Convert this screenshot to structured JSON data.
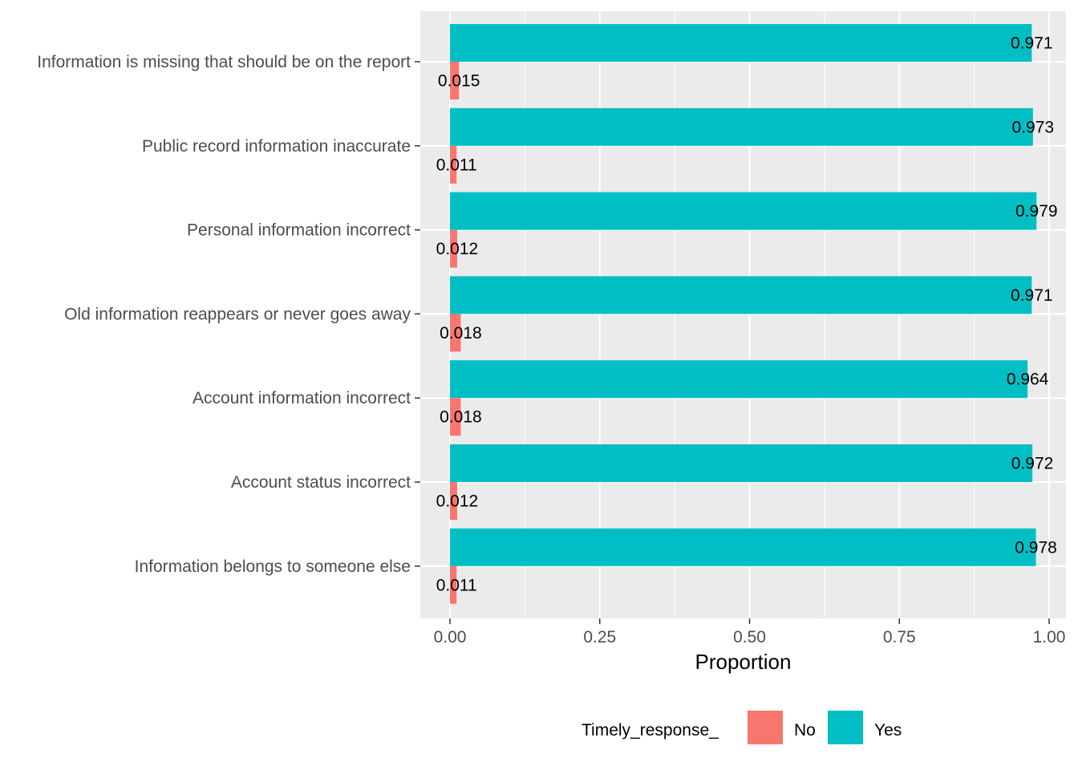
{
  "chart_data": {
    "type": "bar",
    "orientation": "horizontal",
    "title": "",
    "xlabel": "Proportion",
    "ylabel": "",
    "xlim": [
      -0.05,
      1.03
    ],
    "x_ticks": [
      {
        "value": 0.0,
        "label": "0.00"
      },
      {
        "value": 0.25,
        "label": "0.25"
      },
      {
        "value": 0.5,
        "label": "0.50"
      },
      {
        "value": 0.75,
        "label": "0.75"
      },
      {
        "value": 1.0,
        "label": "1.00"
      }
    ],
    "grid": true,
    "legend": {
      "title": "Timely_response_",
      "position": "bottom"
    },
    "categories": [
      "Information is missing that should be on the report",
      "Public record information inaccurate",
      "Personal information incorrect",
      "Old information reappears or never goes away",
      "Account information incorrect",
      "Account status incorrect",
      "Information belongs to someone else"
    ],
    "series": [
      {
        "name": "No",
        "color": "#F8766D",
        "values": [
          0.015,
          0.011,
          0.012,
          0.018,
          0.018,
          0.012,
          0.011
        ],
        "labels": [
          "0.015",
          "0.011",
          "0.012",
          "0.018",
          "0.018",
          "0.012",
          "0.011"
        ]
      },
      {
        "name": "Yes",
        "color": "#00BFC4",
        "values": [
          0.971,
          0.973,
          0.979,
          0.971,
          0.964,
          0.972,
          0.978
        ],
        "labels": [
          "0.971",
          "0.973",
          "0.979",
          "0.971",
          "0.964",
          "0.972",
          "0.978"
        ]
      }
    ]
  }
}
